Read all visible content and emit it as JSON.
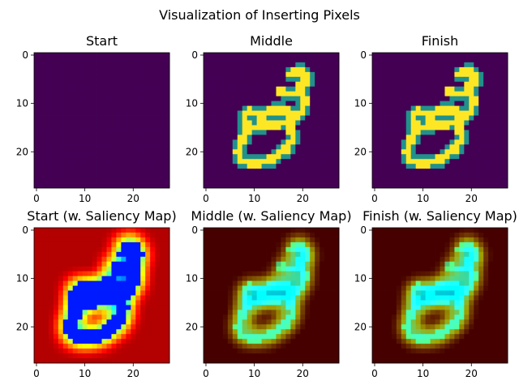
{
  "figure": {
    "suptitle": "Visualization of Inserting Pixels"
  },
  "colors": {
    "viridis_bg": "#440154",
    "viridis_mid": "#21918c",
    "viridis_top": "#fde725"
  },
  "chart_data": [
    {
      "type": "heatmap",
      "title": "Start",
      "colormap": "viridis",
      "content": "empty (all pixels at background value)",
      "xticks": [
        "0",
        "10",
        "20"
      ],
      "yticks": [
        "0",
        "10",
        "20"
      ],
      "xlim": [
        -0.5,
        27.5
      ],
      "ylim": [
        27.5,
        -0.5
      ]
    },
    {
      "type": "heatmap",
      "title": "Middle",
      "colormap": "viridis",
      "content": "MNIST digit strokes",
      "xticks": [
        "0",
        "10",
        "20"
      ],
      "yticks": [
        "0",
        "10",
        "20"
      ],
      "xlim": [
        -0.5,
        27.5
      ],
      "ylim": [
        27.5,
        -0.5
      ]
    },
    {
      "type": "heatmap",
      "title": "Finish",
      "colormap": "viridis",
      "content": "MNIST digit strokes",
      "xticks": [
        "0",
        "10",
        "20"
      ],
      "yticks": [
        "0",
        "10",
        "20"
      ],
      "xlim": [
        -0.5,
        27.5
      ],
      "ylim": [
        27.5,
        -0.5
      ]
    },
    {
      "type": "heatmap",
      "title": "Start (w. Saliency Map)",
      "colormap": "jet",
      "content": "saliency map",
      "xticks": [
        "0",
        "10",
        "20"
      ],
      "yticks": [
        "0",
        "10",
        "20"
      ],
      "xlim": [
        -0.5,
        27.5
      ],
      "ylim": [
        27.5,
        -0.5
      ]
    },
    {
      "type": "heatmap",
      "title": "Middle (w. Saliency Map)",
      "colormap": "jet blended with digit",
      "content": "saliency overlay",
      "xticks": [
        "0",
        "10",
        "20"
      ],
      "yticks": [
        "0",
        "10",
        "20"
      ],
      "xlim": [
        -0.5,
        27.5
      ],
      "ylim": [
        27.5,
        -0.5
      ]
    },
    {
      "type": "heatmap",
      "title": "Finish (w. Saliency Map)",
      "colormap": "jet blended with digit",
      "content": "saliency overlay",
      "xticks": [
        "0",
        "10",
        "20"
      ],
      "yticks": [
        "0",
        "10",
        "20"
      ],
      "xlim": [
        -0.5,
        27.5
      ],
      "ylim": [
        27.5,
        -0.5
      ]
    }
  ]
}
